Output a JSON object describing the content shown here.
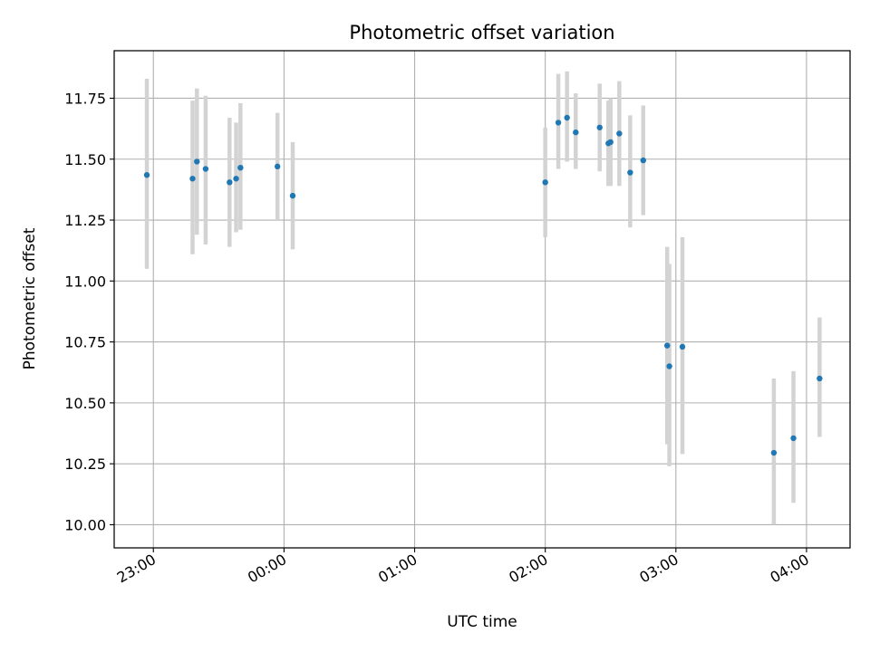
{
  "chart_data": {
    "type": "scatter",
    "title": "Photometric offset variation",
    "xlabel": "UTC time",
    "ylabel": "Photometric offset",
    "x_ticks": [
      "23:00",
      "00:00",
      "01:00",
      "02:00",
      "03:00",
      "04:00"
    ],
    "y_ticks": [
      "10.00",
      "10.25",
      "10.50",
      "10.75",
      "11.00",
      "11.25",
      "11.50",
      "11.75"
    ],
    "xlim": [
      "22:42",
      "04:20"
    ],
    "ylim": [
      9.905,
      11.945
    ],
    "grid": true,
    "colors": {
      "point": "#1f77b4",
      "errorbar": "#d3d3d3",
      "grid": "#b0b0b0"
    },
    "points": [
      {
        "t": "22:57",
        "y": 11.435,
        "lo": 11.05,
        "hi": 11.83
      },
      {
        "t": "23:18",
        "y": 11.42,
        "lo": 11.11,
        "hi": 11.74
      },
      {
        "t": "23:20",
        "y": 11.49,
        "lo": 11.19,
        "hi": 11.79
      },
      {
        "t": "23:24",
        "y": 11.46,
        "lo": 11.15,
        "hi": 11.76
      },
      {
        "t": "23:35",
        "y": 11.405,
        "lo": 11.14,
        "hi": 11.67
      },
      {
        "t": "23:38",
        "y": 11.42,
        "lo": 11.2,
        "hi": 11.65
      },
      {
        "t": "23:40",
        "y": 11.465,
        "lo": 11.21,
        "hi": 11.73
      },
      {
        "t": "23:57",
        "y": 11.47,
        "lo": 11.25,
        "hi": 11.69
      },
      {
        "t": "00:04",
        "y": 11.35,
        "lo": 11.13,
        "hi": 11.57
      },
      {
        "t": "02:00",
        "y": 11.405,
        "lo": 11.18,
        "hi": 11.63
      },
      {
        "t": "02:06",
        "y": 11.65,
        "lo": 11.46,
        "hi": 11.85
      },
      {
        "t": "02:10",
        "y": 11.67,
        "lo": 11.49,
        "hi": 11.86
      },
      {
        "t": "02:14",
        "y": 11.61,
        "lo": 11.46,
        "hi": 11.77
      },
      {
        "t": "02:25",
        "y": 11.63,
        "lo": 11.45,
        "hi": 11.81
      },
      {
        "t": "02:29",
        "y": 11.565,
        "lo": 11.39,
        "hi": 11.74
      },
      {
        "t": "02:30",
        "y": 11.57,
        "lo": 11.39,
        "hi": 11.75
      },
      {
        "t": "02:34",
        "y": 11.605,
        "lo": 11.39,
        "hi": 11.82
      },
      {
        "t": "02:39",
        "y": 11.445,
        "lo": 11.22,
        "hi": 11.68
      },
      {
        "t": "02:45",
        "y": 11.495,
        "lo": 11.27,
        "hi": 11.72
      },
      {
        "t": "02:56",
        "y": 10.735,
        "lo": 10.33,
        "hi": 11.14
      },
      {
        "t": "02:57",
        "y": 10.65,
        "lo": 10.24,
        "hi": 11.07
      },
      {
        "t": "03:03",
        "y": 10.73,
        "lo": 10.29,
        "hi": 11.18
      },
      {
        "t": "03:45",
        "y": 10.295,
        "lo": 10.0,
        "hi": 10.6
      },
      {
        "t": "03:54",
        "y": 10.355,
        "lo": 10.09,
        "hi": 10.63
      },
      {
        "t": "04:06",
        "y": 10.6,
        "lo": 10.36,
        "hi": 10.85
      }
    ]
  }
}
